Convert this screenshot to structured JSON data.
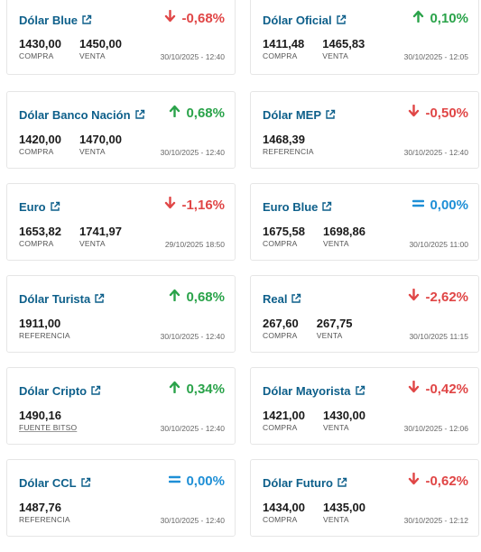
{
  "cards": [
    {
      "name": "Dólar Blue",
      "change": "-0,68%",
      "dir": "down",
      "values": [
        {
          "num": "1430,00",
          "label": "COMPRA"
        },
        {
          "num": "1450,00",
          "label": "VENTA"
        }
      ],
      "timestamp": "30/10/2025 - 12:40"
    },
    {
      "name": "Dólar Oficial",
      "change": "0,10%",
      "dir": "up",
      "values": [
        {
          "num": "1411,48",
          "label": "COMPRA"
        },
        {
          "num": "1465,83",
          "label": "VENTA"
        }
      ],
      "timestamp": "30/10/2025 - 12:05"
    },
    {
      "name": "Dólar Banco Nación",
      "change": "0,68%",
      "dir": "up",
      "values": [
        {
          "num": "1420,00",
          "label": "COMPRA"
        },
        {
          "num": "1470,00",
          "label": "VENTA"
        }
      ],
      "timestamp": "30/10/2025 - 12:40"
    },
    {
      "name": "Dólar MEP",
      "change": "-0,50%",
      "dir": "down",
      "values": [
        {
          "num": "1468,39",
          "label": "REFERENCIA"
        }
      ],
      "timestamp": "30/10/2025 - 12:40"
    },
    {
      "name": "Euro",
      "change": "-1,16%",
      "dir": "down",
      "values": [
        {
          "num": "1653,82",
          "label": "COMPRA"
        },
        {
          "num": "1741,97",
          "label": "VENTA"
        }
      ],
      "timestamp": "29/10/2025 18:50"
    },
    {
      "name": "Euro Blue",
      "change": "0,00%",
      "dir": "flat",
      "values": [
        {
          "num": "1675,58",
          "label": "COMPRA"
        },
        {
          "num": "1698,86",
          "label": "VENTA"
        }
      ],
      "timestamp": "30/10/2025 11:00"
    },
    {
      "name": "Dólar Turista",
      "change": "0,68%",
      "dir": "up",
      "values": [
        {
          "num": "1911,00",
          "label": "REFERENCIA"
        }
      ],
      "timestamp": "30/10/2025 - 12:40"
    },
    {
      "name": "Real",
      "change": "-2,62%",
      "dir": "down",
      "values": [
        {
          "num": "267,60",
          "label": "COMPRA"
        },
        {
          "num": "267,75",
          "label": "VENTA"
        }
      ],
      "timestamp": "30/10/2025 11:15"
    },
    {
      "name": "Dólar Cripto",
      "change": "0,34%",
      "dir": "up",
      "values": [
        {
          "num": "1490,16",
          "label": "FUENTE BITSO",
          "link": true
        }
      ],
      "timestamp": "30/10/2025 - 12:40"
    },
    {
      "name": "Dólar Mayorista",
      "change": "-0,42%",
      "dir": "down",
      "values": [
        {
          "num": "1421,00",
          "label": "COMPRA"
        },
        {
          "num": "1430,00",
          "label": "VENTA"
        }
      ],
      "timestamp": "30/10/2025 - 12:06"
    },
    {
      "name": "Dólar CCL",
      "change": "0,00%",
      "dir": "flat",
      "values": [
        {
          "num": "1487,76",
          "label": "REFERENCIA"
        }
      ],
      "timestamp": "30/10/2025 - 12:40"
    },
    {
      "name": "Dólar Futuro",
      "change": "-0,62%",
      "dir": "down",
      "values": [
        {
          "num": "1434,00",
          "label": "COMPRA"
        },
        {
          "num": "1435,00",
          "label": "VENTA"
        }
      ],
      "timestamp": "30/10/2025 - 12:12"
    }
  ],
  "colors": {
    "name": "#0d5f8a",
    "down": "#e04646",
    "up": "#2aa34a",
    "flat": "#1e8fd6"
  },
  "icons": {
    "down": "arrow-down-icon",
    "up": "arrow-up-icon",
    "flat": "equals-icon",
    "external": "external-link-icon"
  }
}
